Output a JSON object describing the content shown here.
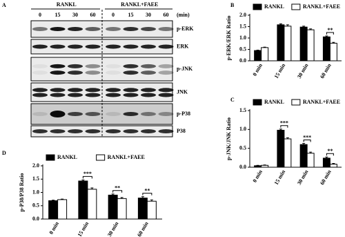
{
  "blot": {
    "panel_label": "A",
    "groups": [
      "RANKL",
      "RANKL+FAEE"
    ],
    "times": [
      "0",
      "15",
      "30",
      "60",
      "0",
      "15",
      "30",
      "60"
    ],
    "time_unit": "(min)",
    "rows": [
      "p-ERK",
      "ERK",
      "p-JNK",
      "JNK",
      "p-P38",
      "P38"
    ]
  },
  "chart_data": [
    {
      "type": "bar",
      "panel_label": "B",
      "ylabel": "p-ERK/ERK Ratio",
      "categories": [
        "0 min",
        "15 min",
        "30 min",
        "60 min"
      ],
      "series": [
        {
          "name": "RANKL",
          "color": "#000000",
          "values": [
            0.45,
            1.58,
            1.48,
            1.05
          ],
          "errors": [
            0.02,
            0.04,
            0.04,
            0.04
          ]
        },
        {
          "name": "RANKL+FAEE",
          "color": "#ffffff",
          "values": [
            0.58,
            1.52,
            1.36,
            0.77
          ],
          "errors": [
            0.02,
            0.06,
            0.04,
            0.04
          ]
        }
      ],
      "significance": [
        null,
        null,
        null,
        "**"
      ],
      "ylim": [
        0,
        2
      ],
      "yticks": [
        {
          "value": 0,
          "label": "0.0"
        },
        0.5,
        {
          "value": 1,
          "label": "1.0"
        },
        1.5,
        {
          "value": 2,
          "label": "2.0"
        }
      ]
    },
    {
      "type": "bar",
      "panel_label": "C",
      "ylabel": "p-JNK/JNK Ratio",
      "categories": [
        "0 min",
        "15 min",
        "30 min",
        "60 min"
      ],
      "series": [
        {
          "name": "RANKL",
          "color": "#000000",
          "values": [
            0.04,
            0.98,
            0.6,
            0.24
          ],
          "errors": [
            0.01,
            0.03,
            0.03,
            0.03
          ]
        },
        {
          "name": "RANKL+FAEE",
          "color": "#ffffff",
          "values": [
            0.05,
            0.75,
            0.37,
            0.08
          ],
          "errors": [
            0.01,
            0.03,
            0.03,
            0.02
          ]
        }
      ],
      "significance": [
        null,
        "***",
        "***",
        "**"
      ],
      "ylim": [
        0,
        1.5
      ],
      "yticks": [
        {
          "value": 0,
          "label": "0.0"
        },
        0.5,
        {
          "value": 1,
          "label": "1.0"
        },
        1.5
      ]
    },
    {
      "type": "bar",
      "panel_label": "D",
      "ylabel": "p-P38/P38 Ratio",
      "categories": [
        "0 min",
        "15 min",
        "30 min",
        "60 min"
      ],
      "series": [
        {
          "name": "RANKL",
          "color": "#000000",
          "values": [
            0.69,
            1.43,
            0.9,
            0.79
          ],
          "errors": [
            0.02,
            0.04,
            0.04,
            0.05
          ]
        },
        {
          "name": "RANKL+FAEE",
          "color": "#ffffff",
          "values": [
            0.73,
            1.12,
            0.77,
            0.67
          ],
          "errors": [
            0.02,
            0.05,
            0.04,
            0.05
          ]
        }
      ],
      "significance": [
        null,
        "***",
        "**",
        "**"
      ],
      "ylim": [
        0,
        2
      ],
      "yticks": [
        {
          "value": 0,
          "label": "0.0"
        },
        0.5,
        {
          "value": 1,
          "label": "1.0"
        },
        1.5,
        {
          "value": 2,
          "label": "2.0"
        }
      ]
    }
  ]
}
